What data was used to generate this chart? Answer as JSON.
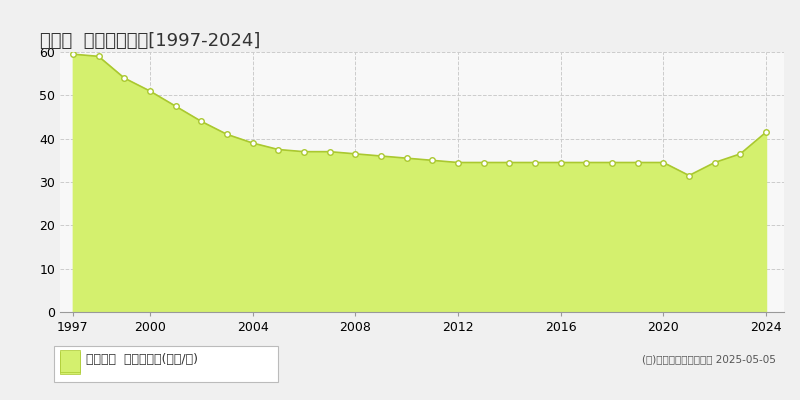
{
  "title": "寒川町  基準地価推移[1997-2024]",
  "years": [
    1997,
    1998,
    1999,
    2000,
    2001,
    2002,
    2003,
    2004,
    2005,
    2006,
    2007,
    2008,
    2009,
    2010,
    2011,
    2012,
    2013,
    2014,
    2015,
    2016,
    2017,
    2018,
    2019,
    2020,
    2021,
    2022,
    2023,
    2024
  ],
  "values": [
    59.5,
    59.0,
    54.0,
    51.0,
    47.5,
    44.0,
    41.0,
    39.0,
    37.5,
    37.0,
    37.0,
    36.5,
    36.0,
    35.5,
    35.0,
    34.5,
    34.5,
    34.5,
    34.5,
    34.5,
    34.5,
    34.5,
    34.5,
    34.5,
    31.5,
    34.5,
    36.5,
    41.5
  ],
  "fill_color": "#d4f06e",
  "line_color": "#aac830",
  "marker_color": "#ffffff",
  "marker_edge_color": "#aac830",
  "bg_color": "#f0f0f0",
  "plot_bg_color": "#f8f8f8",
  "grid_color": "#cccccc",
  "ylim": [
    0,
    60
  ],
  "yticks": [
    0,
    10,
    20,
    30,
    40,
    50,
    60
  ],
  "xticks": [
    1997,
    2000,
    2004,
    2008,
    2012,
    2016,
    2020,
    2024
  ],
  "legend_label": "基準地価  平均坪単価(万円/坪)",
  "copyright_text": "(Ｃ)土地価格ドットコム 2025-05-05",
  "title_fontsize": 13,
  "axis_fontsize": 9,
  "legend_fontsize": 9
}
